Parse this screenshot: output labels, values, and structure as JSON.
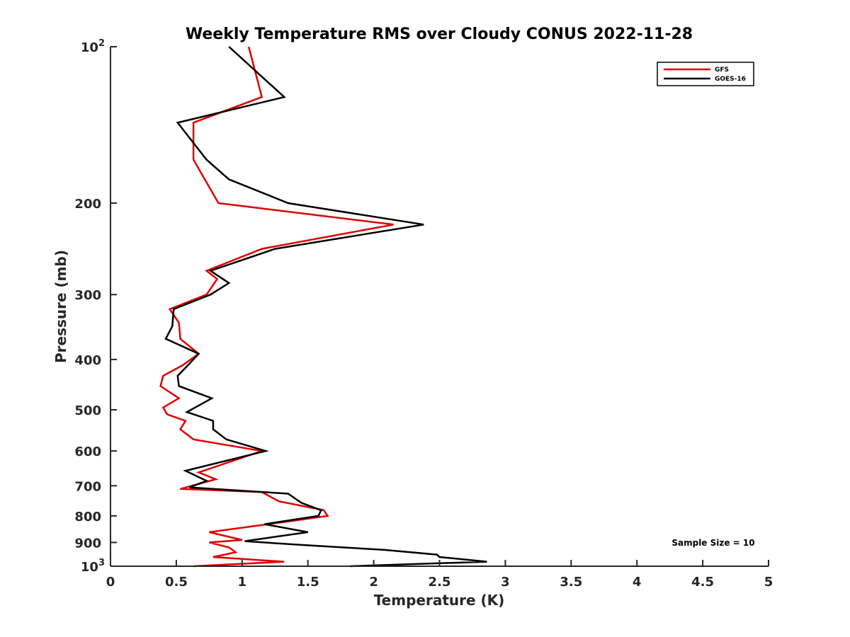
{
  "chart_data": {
    "type": "line",
    "title": "Weekly Temperature RMS over Cloudy CONUS 2022-11-28",
    "xlabel": "Temperature (K)",
    "ylabel": "Pressure (mb)",
    "xlim": [
      0,
      5
    ],
    "ylim": [
      100,
      1000
    ],
    "yscale": "log",
    "y_reversed": true,
    "grid": false,
    "legend_position": "top-right",
    "x_ticks": [
      {
        "value": 0,
        "label": "0"
      },
      {
        "value": 0.5,
        "label": "0.5"
      },
      {
        "value": 1,
        "label": "1"
      },
      {
        "value": 1.5,
        "label": "1.5"
      },
      {
        "value": 2,
        "label": "2"
      },
      {
        "value": 2.5,
        "label": "2.5"
      },
      {
        "value": 3,
        "label": "3"
      },
      {
        "value": 3.5,
        "label": "3.5"
      },
      {
        "value": 4,
        "label": "4"
      },
      {
        "value": 4.5,
        "label": "4.5"
      },
      {
        "value": 5,
        "label": "5"
      }
    ],
    "y_ticks": [
      {
        "value": 100,
        "label": "10",
        "sup": "2"
      },
      {
        "value": 200,
        "label": "200"
      },
      {
        "value": 300,
        "label": "300"
      },
      {
        "value": 400,
        "label": "400"
      },
      {
        "value": 500,
        "label": "500"
      },
      {
        "value": 600,
        "label": "600"
      },
      {
        "value": 700,
        "label": "700"
      },
      {
        "value": 800,
        "label": "800"
      },
      {
        "value": 900,
        "label": "900"
      },
      {
        "value": 1000,
        "label": "10",
        "sup": "3"
      }
    ],
    "series": [
      {
        "name": "GFS",
        "color": "#e00000",
        "points": [
          {
            "p": 100,
            "t": 1.05
          },
          {
            "p": 125,
            "t": 1.15
          },
          {
            "p": 140,
            "t": 0.63
          },
          {
            "p": 165,
            "t": 0.63
          },
          {
            "p": 200,
            "t": 0.82
          },
          {
            "p": 220,
            "t": 2.15
          },
          {
            "p": 245,
            "t": 1.15
          },
          {
            "p": 270,
            "t": 0.73
          },
          {
            "p": 280,
            "t": 0.81
          },
          {
            "p": 300,
            "t": 0.73
          },
          {
            "p": 320,
            "t": 0.45
          },
          {
            "p": 340,
            "t": 0.52
          },
          {
            "p": 365,
            "t": 0.53
          },
          {
            "p": 390,
            "t": 0.67
          },
          {
            "p": 410,
            "t": 0.55
          },
          {
            "p": 430,
            "t": 0.4
          },
          {
            "p": 450,
            "t": 0.38
          },
          {
            "p": 475,
            "t": 0.52
          },
          {
            "p": 495,
            "t": 0.4
          },
          {
            "p": 510,
            "t": 0.43
          },
          {
            "p": 525,
            "t": 0.57
          },
          {
            "p": 545,
            "t": 0.53
          },
          {
            "p": 570,
            "t": 0.63
          },
          {
            "p": 600,
            "t": 1.15
          },
          {
            "p": 660,
            "t": 0.67
          },
          {
            "p": 680,
            "t": 0.8
          },
          {
            "p": 710,
            "t": 0.53
          },
          {
            "p": 720,
            "t": 1.15
          },
          {
            "p": 750,
            "t": 1.28
          },
          {
            "p": 780,
            "t": 1.62
          },
          {
            "p": 800,
            "t": 1.65
          },
          {
            "p": 820,
            "t": 1.35
          },
          {
            "p": 860,
            "t": 0.75
          },
          {
            "p": 890,
            "t": 1.0
          },
          {
            "p": 900,
            "t": 0.75
          },
          {
            "p": 920,
            "t": 0.9
          },
          {
            "p": 940,
            "t": 0.95
          },
          {
            "p": 960,
            "t": 0.78
          },
          {
            "p": 980,
            "t": 1.32
          },
          {
            "p": 1000,
            "t": 0.63
          }
        ]
      },
      {
        "name": "GOES-16",
        "color": "#000000",
        "points": [
          {
            "p": 100,
            "t": 0.9
          },
          {
            "p": 125,
            "t": 1.32
          },
          {
            "p": 140,
            "t": 0.51
          },
          {
            "p": 165,
            "t": 0.73
          },
          {
            "p": 180,
            "t": 0.9
          },
          {
            "p": 200,
            "t": 1.35
          },
          {
            "p": 220,
            "t": 2.38
          },
          {
            "p": 245,
            "t": 1.25
          },
          {
            "p": 270,
            "t": 0.76
          },
          {
            "p": 285,
            "t": 0.9
          },
          {
            "p": 300,
            "t": 0.76
          },
          {
            "p": 320,
            "t": 0.48
          },
          {
            "p": 345,
            "t": 0.47
          },
          {
            "p": 365,
            "t": 0.42
          },
          {
            "p": 390,
            "t": 0.67
          },
          {
            "p": 410,
            "t": 0.59
          },
          {
            "p": 430,
            "t": 0.51
          },
          {
            "p": 450,
            "t": 0.52
          },
          {
            "p": 475,
            "t": 0.77
          },
          {
            "p": 505,
            "t": 0.58
          },
          {
            "p": 525,
            "t": 0.78
          },
          {
            "p": 545,
            "t": 0.78
          },
          {
            "p": 570,
            "t": 0.88
          },
          {
            "p": 600,
            "t": 1.18
          },
          {
            "p": 655,
            "t": 0.57
          },
          {
            "p": 685,
            "t": 0.73
          },
          {
            "p": 705,
            "t": 0.6
          },
          {
            "p": 725,
            "t": 1.35
          },
          {
            "p": 755,
            "t": 1.45
          },
          {
            "p": 780,
            "t": 1.6
          },
          {
            "p": 800,
            "t": 1.58
          },
          {
            "p": 830,
            "t": 1.17
          },
          {
            "p": 860,
            "t": 1.5
          },
          {
            "p": 895,
            "t": 1.02
          },
          {
            "p": 910,
            "t": 1.45
          },
          {
            "p": 930,
            "t": 2.08
          },
          {
            "p": 950,
            "t": 2.48
          },
          {
            "p": 960,
            "t": 2.5
          },
          {
            "p": 980,
            "t": 2.86
          },
          {
            "p": 1000,
            "t": 1.82
          }
        ]
      }
    ],
    "annotation": "Sample Size = 10"
  }
}
